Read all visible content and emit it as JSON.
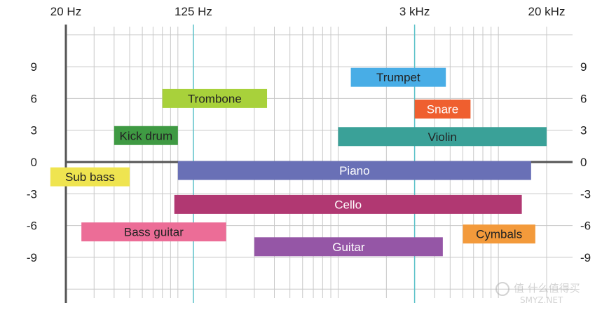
{
  "chart_data": {
    "type": "bar",
    "orientation": "horizontal-range",
    "title": "",
    "xlabel": "",
    "ylabel": "",
    "x_scale": "log",
    "x_unit": "Hz",
    "xlim": [
      20,
      20000
    ],
    "ylim": [
      -12,
      12
    ],
    "grid": true,
    "x_ticks": [
      {
        "value": 20,
        "label": "20 Hz"
      },
      {
        "value": 125,
        "label": "125 Hz"
      },
      {
        "value": 3000,
        "label": "3 kHz"
      },
      {
        "value": 20000,
        "label": "20 kHz"
      }
    ],
    "y_ticks": [
      {
        "value": 9,
        "label": "9"
      },
      {
        "value": 6,
        "label": "6"
      },
      {
        "value": 3,
        "label": "3"
      },
      {
        "value": 0,
        "label": "0"
      },
      {
        "value": -3,
        "label": "-3"
      },
      {
        "value": -6,
        "label": "-6"
      },
      {
        "value": -9,
        "label": "-9"
      }
    ],
    "highlight_lines": [
      125,
      3000
    ],
    "bars": [
      {
        "label": "Trumpet",
        "x_start": 1200,
        "x_end": 4700,
        "y": 8,
        "color": "#48ade6",
        "text_color": "#222222"
      },
      {
        "label": "Trombone",
        "x_start": 80,
        "x_end": 360,
        "y": 6,
        "color": "#a8d13b",
        "text_color": "#222222"
      },
      {
        "label": "Snare",
        "x_start": 3000,
        "x_end": 6700,
        "y": 5,
        "color": "#ef5f2f",
        "text_color": "#ffffff"
      },
      {
        "label": "Kick drum",
        "x_start": 40,
        "x_end": 100,
        "y": 2.5,
        "color": "#3f9a43",
        "text_color": "#222222"
      },
      {
        "label": "Violin",
        "x_start": 1000,
        "x_end": 20000,
        "y": 2.4,
        "color": "#3aa198",
        "text_color": "#222222"
      },
      {
        "label": "Sub bass",
        "x_start": 16,
        "x_end": 50,
        "y": -1.4,
        "color": "#efe450",
        "text_color": "#222222"
      },
      {
        "label": "Piano",
        "x_start": 100,
        "x_end": 16000,
        "y": -0.8,
        "color": "#6970b6",
        "text_color": "#ffffff"
      },
      {
        "label": "Cello",
        "x_start": 95,
        "x_end": 14000,
        "y": -4,
        "color": "#b13872",
        "text_color": "#ffffff"
      },
      {
        "label": "Bass guitar",
        "x_start": 25,
        "x_end": 200,
        "y": -6.6,
        "color": "#ec6d97",
        "text_color": "#222222"
      },
      {
        "label": "Cymbals",
        "x_start": 6000,
        "x_end": 17000,
        "y": -6.8,
        "color": "#f39a3b",
        "text_color": "#222222"
      },
      {
        "label": "Guitar",
        "x_start": 300,
        "x_end": 4500,
        "y": -8,
        "color": "#9556a6",
        "text_color": "#ffffff"
      }
    ]
  },
  "watermark": {
    "line1": "值 什么值得买",
    "line2": "SMYZ.NET"
  }
}
